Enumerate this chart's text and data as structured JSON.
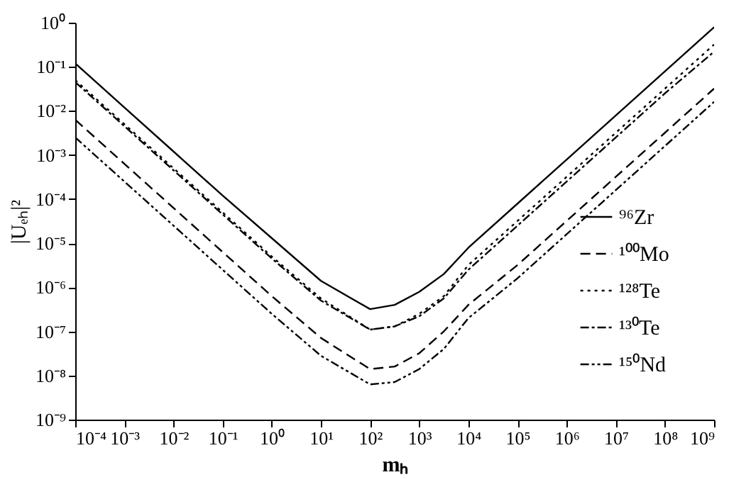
{
  "chart_data": {
    "type": "line",
    "xlabel": "mₕ",
    "ylabel": "|Uₑₕ|²",
    "log": "xy",
    "grid": false,
    "legend": "right",
    "marker": "none",
    "x": [
      0.0001,
      0.001,
      0.01,
      0.1,
      1,
      10,
      100,
      316,
      1000,
      3162,
      10000.0,
      100000.0,
      1000000.0,
      10000000.0,
      100000000.0,
      1000000000.0
    ],
    "xlim": [
      0.0001,
      1000000000.0
    ],
    "xticks": [
      {
        "value": 0.0001,
        "label": "10⁻⁴"
      },
      {
        "value": 0.001,
        "label": "10⁻³"
      },
      {
        "value": 0.01,
        "label": "10⁻²"
      },
      {
        "value": 0.1,
        "label": "10⁻¹"
      },
      {
        "value": 1,
        "label": "10⁰"
      },
      {
        "value": 10,
        "label": "10¹"
      },
      {
        "value": 100,
        "label": "10²"
      },
      {
        "value": 1000,
        "label": "10³"
      },
      {
        "value": 10000.0,
        "label": "10⁴"
      },
      {
        "value": 100000.0,
        "label": "10⁵"
      },
      {
        "value": 1000000.0,
        "label": "10⁶"
      },
      {
        "value": 10000000.0,
        "label": "10⁷"
      },
      {
        "value": 100000000.0,
        "label": "10⁸"
      },
      {
        "value": 1000000000.0,
        "label": "10⁹"
      }
    ],
    "ylim": [
      1e-09,
      1
    ],
    "yticks": [
      {
        "value": 1e-09,
        "label": "10⁻⁹"
      },
      {
        "value": 1e-08,
        "label": "10⁻⁸"
      },
      {
        "value": 1e-07,
        "label": "10⁻⁷"
      },
      {
        "value": 1e-06,
        "label": "10⁻⁶"
      },
      {
        "value": 1e-05,
        "label": "10⁻⁵"
      },
      {
        "value": 0.0001,
        "label": "10⁻⁴"
      },
      {
        "value": 0.001,
        "label": "10⁻³"
      },
      {
        "value": 0.01,
        "label": "10⁻²"
      },
      {
        "value": 0.1,
        "label": "10⁻¹"
      },
      {
        "value": 1,
        "label": "10⁰"
      }
    ],
    "series": [
      {
        "name": "⁹⁶Zr",
        "color": "#000000",
        "line_style": "solid",
        "values": [
          0.12,
          0.012,
          0.0012,
          0.00012,
          1.3e-05,
          1.4e-06,
          3.2e-07,
          4e-07,
          7.9e-07,
          2e-06,
          7.9e-06,
          7.9e-05,
          0.00079,
          0.0079,
          0.079,
          0.79
        ]
      },
      {
        "name": "¹⁰⁰Mo",
        "color": "#000000",
        "line_style": "dashed",
        "values": [
          0.0063,
          0.00063,
          6.3e-05,
          6.3e-06,
          6.3e-07,
          7.1e-08,
          1.4e-08,
          1.6e-08,
          3.2e-08,
          1e-07,
          4e-07,
          3.2e-06,
          3.2e-05,
          0.00032,
          0.0032,
          0.032
        ]
      },
      {
        "name": "¹²⁸Te",
        "color": "#000000",
        "line_style": "dotted",
        "values": [
          0.05,
          0.005,
          0.0005,
          5e-05,
          5e-06,
          5.6e-07,
          1.1e-07,
          1.3e-07,
          2.5e-07,
          6.3e-07,
          3.2e-06,
          3.2e-05,
          0.00032,
          0.0032,
          0.032,
          0.32
        ]
      },
      {
        "name": "¹³⁰Te",
        "color": "#000000",
        "line_style": "dashdot",
        "values": [
          0.045,
          0.0045,
          0.00045,
          4.5e-05,
          4.5e-06,
          5e-07,
          1.1e-07,
          1.3e-07,
          2.2e-07,
          5.6e-07,
          2.5e-06,
          2.5e-05,
          0.00025,
          0.0025,
          0.025,
          0.22
        ]
      },
      {
        "name": "¹⁵⁰Nd",
        "color": "#000000",
        "line_style": "dashdotdot",
        "values": [
          0.0025,
          0.00025,
          2.5e-05,
          2.5e-06,
          2.5e-07,
          2.8e-08,
          6.3e-09,
          7.1e-09,
          1.4e-08,
          4e-08,
          2e-07,
          1.6e-06,
          1.6e-05,
          0.00016,
          0.0016,
          0.016
        ]
      }
    ]
  }
}
